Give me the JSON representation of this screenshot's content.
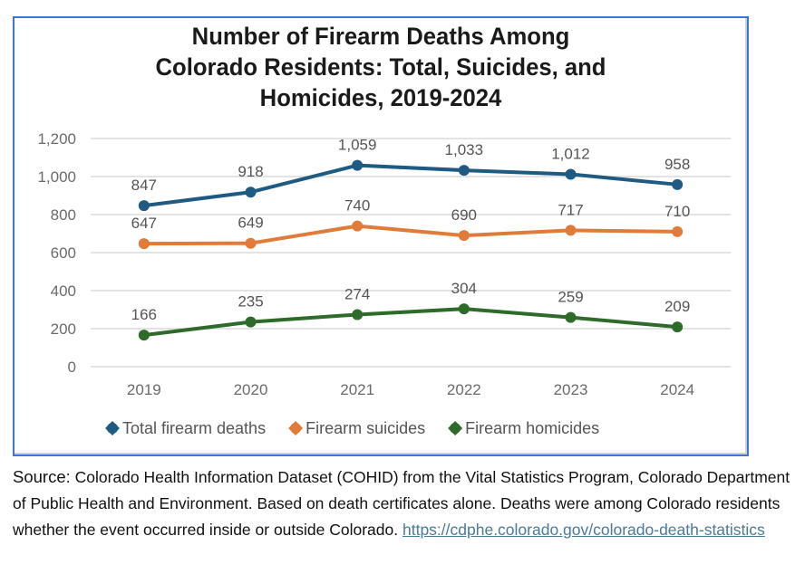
{
  "chart_data": {
    "type": "line",
    "title_lines": [
      "Number of Firearm Deaths Among",
      "Colorado Residents: Total, Suicides, and",
      "Homicides, 2019-2024"
    ],
    "xlabel": "",
    "ylabel": "",
    "categories": [
      "2019",
      "2020",
      "2021",
      "2022",
      "2023",
      "2024"
    ],
    "ylim": [
      0,
      1200
    ],
    "yticks": [
      0,
      200,
      400,
      600,
      800,
      1000,
      1200
    ],
    "ytick_labels": [
      "0",
      "200",
      "400",
      "600",
      "800",
      "1,000",
      "1,200"
    ],
    "grid": true,
    "legend_position": "bottom",
    "series": [
      {
        "name": "Total firearm deaths",
        "color": "#1f5a82",
        "values": [
          847,
          918,
          1059,
          1033,
          1012,
          958
        ],
        "labels": [
          "847",
          "918",
          "1,059",
          "1,033",
          "1,012",
          "958"
        ]
      },
      {
        "name": "Firearm suicides",
        "color": "#e07b39",
        "values": [
          647,
          649,
          740,
          690,
          717,
          710
        ],
        "labels": [
          "647",
          "649",
          "740",
          "690",
          "717",
          "710"
        ]
      },
      {
        "name": "Firearm homicides",
        "color": "#2e6b2a",
        "values": [
          166,
          235,
          274,
          304,
          259,
          209
        ],
        "labels": [
          "166",
          "235",
          "274",
          "304",
          "259",
          "209"
        ]
      }
    ]
  },
  "source": {
    "label": "Source:",
    "text": " Colorado Health Information Dataset (COHID) from the Vital Statistics Program, Colorado Department of Public Health and Environment. Based on death certificates alone. Deaths were among Colorado residents whether the event occurred inside or outside Colorado. ",
    "link_text": "https://cdphe.colorado.gov/colorado-death-statistics"
  }
}
